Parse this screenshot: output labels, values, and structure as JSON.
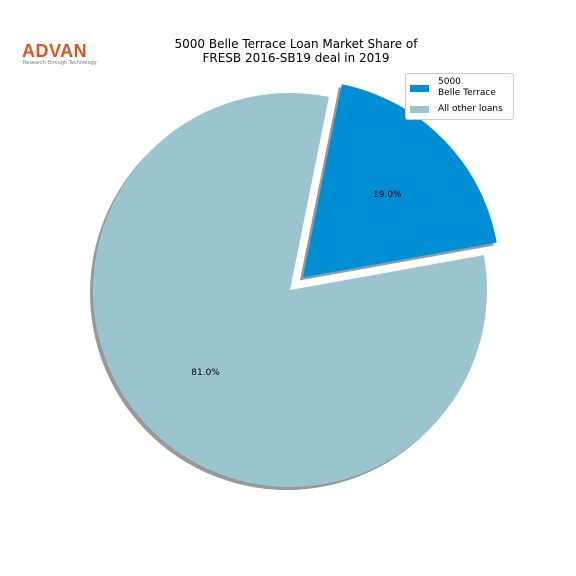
{
  "logo": {
    "name": "ADVAN",
    "tagline": "Research through Technology"
  },
  "chart_data": {
    "type": "pie",
    "title": "5000 Belle Terrace Loan Market Share of\nFRESB 2016-SB19 deal in 2019",
    "categories": [
      "5000\nBelle Terrace",
      "All other loans"
    ],
    "values": [
      19.0,
      81.0
    ],
    "value_labels": [
      "19.0%",
      "81.0%"
    ],
    "colors": [
      "#008fd5",
      "#9ac5ce"
    ],
    "explode": [
      true,
      false
    ],
    "shadow": true,
    "legend": "upper right"
  }
}
